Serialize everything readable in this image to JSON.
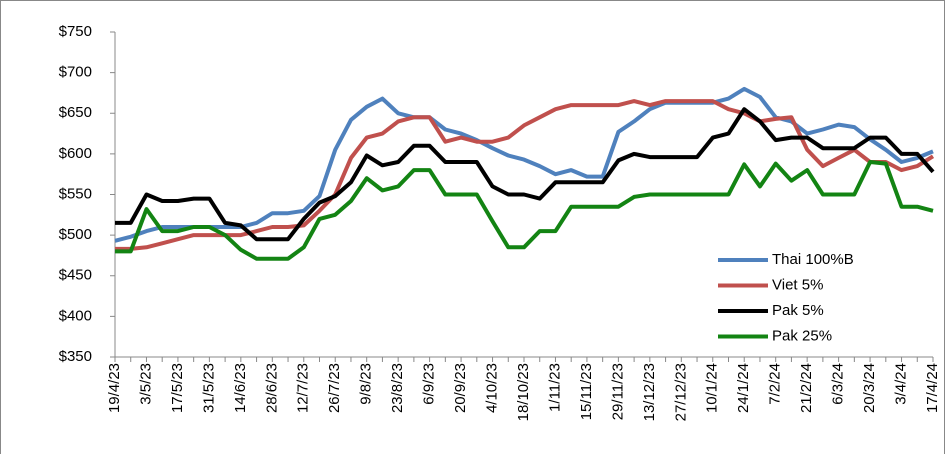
{
  "chart_data": {
    "type": "line",
    "categories": [
      "19/4/23",
      null,
      "3/5/23",
      null,
      "17/5/23",
      null,
      "31/5/23",
      null,
      "14/6/23",
      null,
      "28/6/23",
      null,
      "12/7/23",
      null,
      "26/7/23",
      null,
      "9/8/23",
      null,
      "23/8/23",
      null,
      "6/9/23",
      null,
      "20/9/23",
      null,
      "4/10/23",
      null,
      "18/10/23",
      null,
      "1/11/23",
      null,
      "15/11/23",
      null,
      "29/11/23",
      null,
      "13/12/23",
      null,
      "27/12/23",
      null,
      "10/1/24",
      null,
      "24/1/24",
      null,
      "7/2/24",
      null,
      "21/2/24",
      null,
      "6/3/24",
      null,
      "20/3/24",
      null,
      "3/4/24",
      null,
      "17/4/24"
    ],
    "series": [
      {
        "name": "Thai 100%B",
        "color": "#4f81bd",
        "values": [
          493,
          498,
          505,
          510,
          510,
          510,
          510,
          510,
          510,
          515,
          527,
          527,
          530,
          548,
          605,
          642,
          658,
          668,
          650,
          645,
          645,
          630,
          625,
          617,
          607,
          598,
          593,
          585,
          575,
          580,
          572,
          572,
          627,
          640,
          655,
          663,
          663,
          663,
          663,
          668,
          680,
          670,
          645,
          640,
          625,
          630,
          636,
          633,
          618,
          605,
          590,
          595,
          603
        ]
      },
      {
        "name": "Viet 5%",
        "color": "#c0504d",
        "values": [
          483,
          483,
          485,
          490,
          495,
          500,
          500,
          500,
          500,
          505,
          510,
          510,
          512,
          530,
          550,
          595,
          620,
          625,
          640,
          645,
          645,
          615,
          620,
          615,
          615,
          620,
          635,
          645,
          655,
          660,
          660,
          660,
          660,
          665,
          660,
          665,
          665,
          665,
          665,
          655,
          650,
          640,
          643,
          645,
          605,
          585,
          595,
          605,
          590,
          590,
          580,
          585,
          597
        ]
      },
      {
        "name": "Pak 5%",
        "color": "#000000",
        "values": [
          515,
          515,
          550,
          542,
          542,
          545,
          545,
          515,
          512,
          495,
          495,
          495,
          520,
          540,
          548,
          565,
          598,
          586,
          590,
          610,
          610,
          590,
          590,
          590,
          560,
          550,
          550,
          545,
          565,
          565,
          565,
          565,
          592,
          600,
          596,
          596,
          596,
          596,
          620,
          625,
          655,
          640,
          617,
          620,
          620,
          607,
          607,
          607,
          620,
          620,
          600,
          600,
          578
        ]
      },
      {
        "name": "Pak 25%",
        "color": "#138413",
        "values": [
          480,
          480,
          532,
          505,
          505,
          510,
          510,
          500,
          482,
          471,
          471,
          471,
          485,
          520,
          525,
          542,
          570,
          555,
          560,
          580,
          580,
          550,
          550,
          550,
          517,
          485,
          485,
          505,
          505,
          535,
          535,
          535,
          535,
          547,
          550,
          550,
          550,
          550,
          550,
          550,
          587,
          560,
          588,
          567,
          580,
          550,
          550,
          550,
          590,
          588,
          535,
          535,
          530
        ]
      }
    ],
    "ylim": [
      350,
      750
    ],
    "yticks": [
      {
        "value": 350,
        "label": "$350"
      },
      {
        "value": 400,
        "label": "$400"
      },
      {
        "value": 450,
        "label": "$450"
      },
      {
        "value": 500,
        "label": "$500"
      },
      {
        "value": 550,
        "label": "$550"
      },
      {
        "value": 600,
        "label": "$600"
      },
      {
        "value": 650,
        "label": "$650"
      },
      {
        "value": 700,
        "label": "$700"
      },
      {
        "value": 750,
        "label": "$750"
      }
    ],
    "grid": false
  }
}
